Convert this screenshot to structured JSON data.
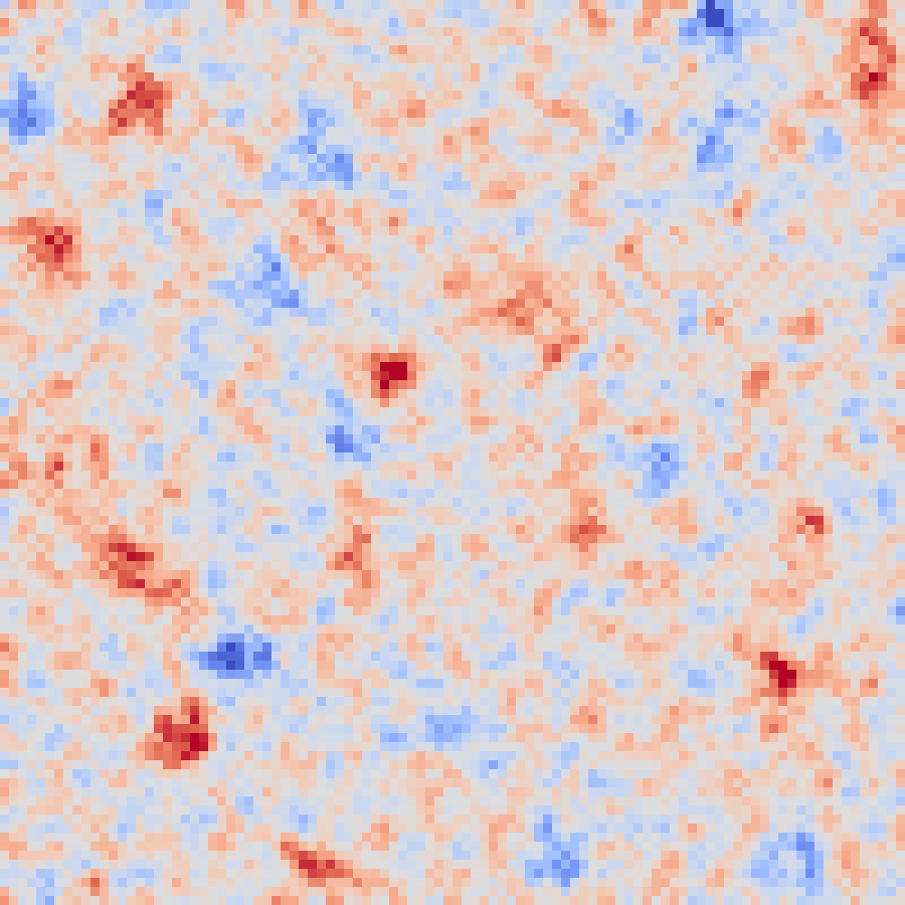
{
  "chart_data": {
    "type": "heatmap",
    "grid": {
      "rows": 100,
      "cols": 100
    },
    "value_range": [
      -1,
      1
    ],
    "colormap": "coolwarm",
    "colormap_stops": [
      "#3b4cc0",
      "#6788ee",
      "#9abbff",
      "#c9d7f0",
      "#dddddd",
      "#f2cbb7",
      "#f7a889",
      "#e26952",
      "#b40426"
    ],
    "features": [
      {
        "row": 6,
        "col": 97,
        "value": 1.0,
        "sigma": 2.5
      },
      {
        "row": 26,
        "col": 5,
        "value": 1.0,
        "sigma": 2.5
      },
      {
        "row": 41,
        "col": 43,
        "value": 0.95,
        "sigma": 2.2
      },
      {
        "row": 74,
        "col": 86,
        "value": 0.85,
        "sigma": 2.5
      },
      {
        "row": 62,
        "col": 14,
        "value": 0.75,
        "sigma": 3.0
      },
      {
        "row": 81,
        "col": 20,
        "value": 0.75,
        "sigma": 2.5
      },
      {
        "row": 56,
        "col": 89,
        "value": 0.65,
        "sigma": 2.0
      },
      {
        "row": 10,
        "col": 14,
        "value": 0.6,
        "sigma": 3.0
      },
      {
        "row": 50,
        "col": 6,
        "value": 0.55,
        "sigma": 4.0
      },
      {
        "row": 60,
        "col": 38,
        "value": 0.55,
        "sigma": 2.5
      },
      {
        "row": 58,
        "col": 64,
        "value": 0.5,
        "sigma": 3.0
      },
      {
        "row": 95,
        "col": 36,
        "value": 0.6,
        "sigma": 3.0
      },
      {
        "row": 36,
        "col": 58,
        "value": 0.45,
        "sigma": 3.0
      },
      {
        "row": 24,
        "col": 38,
        "value": 0.4,
        "sigma": 3.0
      },
      {
        "row": 2,
        "col": 79,
        "value": -0.95,
        "sigma": 2.5
      },
      {
        "row": 12,
        "col": 2,
        "value": -0.65,
        "sigma": 2.0
      },
      {
        "row": 16,
        "col": 36,
        "value": -0.7,
        "sigma": 2.5
      },
      {
        "row": 47,
        "col": 38,
        "value": -0.7,
        "sigma": 2.5
      },
      {
        "row": 72,
        "col": 26,
        "value": -0.75,
        "sigma": 2.5
      },
      {
        "row": 51,
        "col": 73,
        "value": -0.65,
        "sigma": 2.5
      },
      {
        "row": 14,
        "col": 80,
        "value": -0.6,
        "sigma": 3.0
      },
      {
        "row": 94,
        "col": 62,
        "value": -0.55,
        "sigma": 2.5
      },
      {
        "row": 93,
        "col": 88,
        "value": -0.55,
        "sigma": 2.5
      },
      {
        "row": 32,
        "col": 30,
        "value": -0.45,
        "sigma": 3.0
      },
      {
        "row": 80,
        "col": 48,
        "value": -0.4,
        "sigma": 3.0
      }
    ],
    "noise_amplitude": 0.38,
    "baseline": 0.05,
    "xlabel": "",
    "ylabel": "",
    "title": ""
  }
}
